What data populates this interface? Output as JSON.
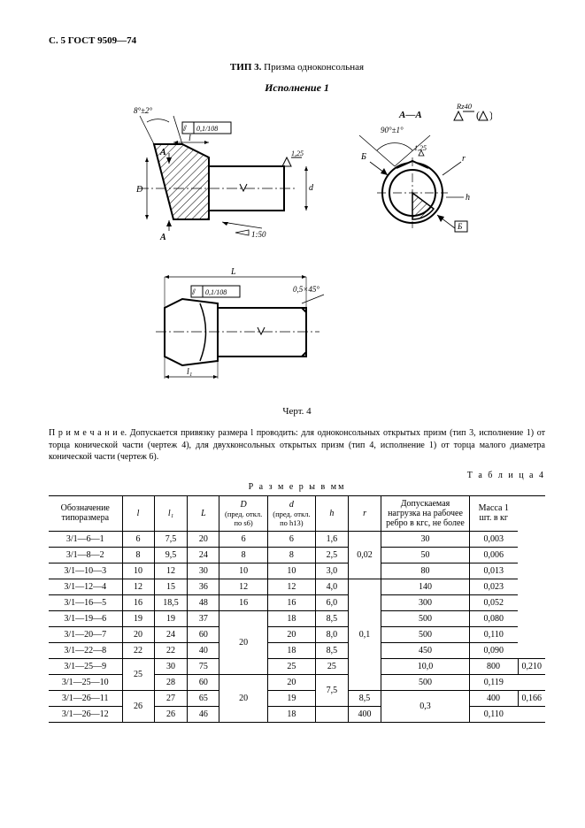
{
  "header": "С. 5 ГОСТ 9509—74",
  "title_prefix": "ТИП 3. ",
  "title_text": "Призма одноконсольная",
  "ispolnenie": "Исполнение 1",
  "fig_caption": "Черт. 4",
  "note_label": "П р и м е ч а н и е.",
  "note_text": " Допускается  привязку  размера l  проводить: для  одноконсольных открытых  призм (тип 3, исполнение 1) от торца конической части (чертеж 4), для двухконсольных открытых призм (тип 4, исполнение 1) от торца малого диаметра конической части (чертеж 6).",
  "table_label": "Т а б л и ц а  4",
  "table_title": "Р а з м е р ы  в мм",
  "columns": {
    "c0": "Обозначение типоразмера",
    "c1": "l",
    "c2": "l₁",
    "c3": "L",
    "c4": "D",
    "c4_sub": "(пред. откл. по s6)",
    "c5": "d",
    "c5_sub": "(пред. откл. по h13)",
    "c6": "h",
    "c7": "r",
    "c8": "Допускаемая нагрузка на рабочее ребро в кгс, не более",
    "c9": "Масса 1 шт. в кг"
  },
  "rows": [
    {
      "des": "3/1—6—1",
      "l": "6",
      "l1": "7,5",
      "L": "20",
      "D": "6",
      "d": "6",
      "h": "1,6",
      "r": "0,02",
      "load": "30",
      "mass": "0,003",
      "D_span": 1,
      "d_span": 1,
      "r_span": 3,
      "l_span": 1,
      "h_span": 1
    },
    {
      "des": "3/1—8—2",
      "l": "8",
      "l1": "9,5",
      "L": "24",
      "D": "8",
      "d": "8",
      "h": "2,5",
      "load": "50",
      "mass": "0,006",
      "D_span": 1,
      "d_span": 1,
      "l_span": 1,
      "h_span": 1
    },
    {
      "des": "3/1—10—3",
      "l": "10",
      "l1": "12",
      "L": "30",
      "D": "10",
      "d": "10",
      "h": "3,0",
      "load": "80",
      "mass": "0,013",
      "D_span": 1,
      "d_span": 1,
      "l_span": 1,
      "h_span": 1
    },
    {
      "des": "3/1—12—4",
      "l": "12",
      "l1": "15",
      "L": "36",
      "D": "12",
      "d": "12",
      "h": "4,0",
      "r": "0,1",
      "load": "140",
      "mass": "0,023",
      "D_span": 1,
      "d_span": 1,
      "r_span": 7,
      "l_span": 1,
      "h_span": 1
    },
    {
      "des": "3/1—16—5",
      "l": "16",
      "l1": "18,5",
      "L": "48",
      "D": "16",
      "d": "16",
      "h": "6,0",
      "load": "300",
      "mass": "0,052",
      "D_span": 1,
      "d_span": 1,
      "l_span": 1,
      "h_span": 1
    },
    {
      "des": "3/1—19—6",
      "l": "19",
      "l1": "19",
      "L": "37",
      "D": "20",
      "d": "18",
      "h": "8,5",
      "load": "500",
      "mass": "0,080",
      "D_span": 4,
      "d_span": 1,
      "l_span": 1,
      "h_span": 1
    },
    {
      "des": "3/1—20—7",
      "l": "20",
      "l1": "24",
      "L": "60",
      "d": "20",
      "h": "8,0",
      "load": "500",
      "mass": "0,110",
      "d_span": 1,
      "l_span": 1,
      "h_span": 1
    },
    {
      "des": "3/1—22—8",
      "l": "22",
      "l1": "22",
      "L": "40",
      "d": "18",
      "h": "8,5",
      "load": "450",
      "mass": "0,090",
      "d_span": 1,
      "l_span": 1,
      "h_span": 1
    },
    {
      "des": "3/1—25—9",
      "l": "25",
      "l1": "30",
      "L": "75",
      "D": "25",
      "d": "25",
      "h": "10,0",
      "load": "800",
      "mass": "0,210",
      "D_span": 1,
      "d_span": 1,
      "l_span": 2,
      "h_span": 1
    },
    {
      "des": "3/1—25—10",
      "l1": "28",
      "L": "60",
      "D": "20",
      "d": "20",
      "h": "7,5",
      "load": "500",
      "mass": "0,119",
      "D_span": 3,
      "d_span": 1,
      "h_span": 2
    },
    {
      "des": "3/1—26—11",
      "l": "26",
      "l1": "27",
      "L": "65",
      "d": "19",
      "r": "0,3",
      "h": "8,5",
      "load": "400",
      "mass": "0,166",
      "d_span": 1,
      "r_span": 2,
      "l_span": 2,
      "h_span": 1
    },
    {
      "des": "3/1—26—12",
      "l1": "26",
      "L": "46",
      "d": "18",
      "load": "400",
      "mass": "0,110",
      "d_span": 1,
      "h_span": 1
    }
  ],
  "drawing": {
    "annotations": {
      "angle_top": "8°±2°",
      "tol1": "0,1/108",
      "surf1": "1,25",
      "taper": "1:50",
      "L": "L",
      "l": "l",
      "l1": "l₁",
      "tol2": "0,1/108",
      "chamfer": "0,5×45°",
      "section": "A—A",
      "rz": "Rz40",
      "angle90": "90°±1°",
      "surf2": "1,25",
      "B": "Б",
      "A": "A",
      "r": "r",
      "h": "h",
      "d": "d",
      "D": "D"
    },
    "colors": {
      "stroke": "#000000",
      "hatch": "#000000",
      "bg": "#ffffff"
    }
  }
}
